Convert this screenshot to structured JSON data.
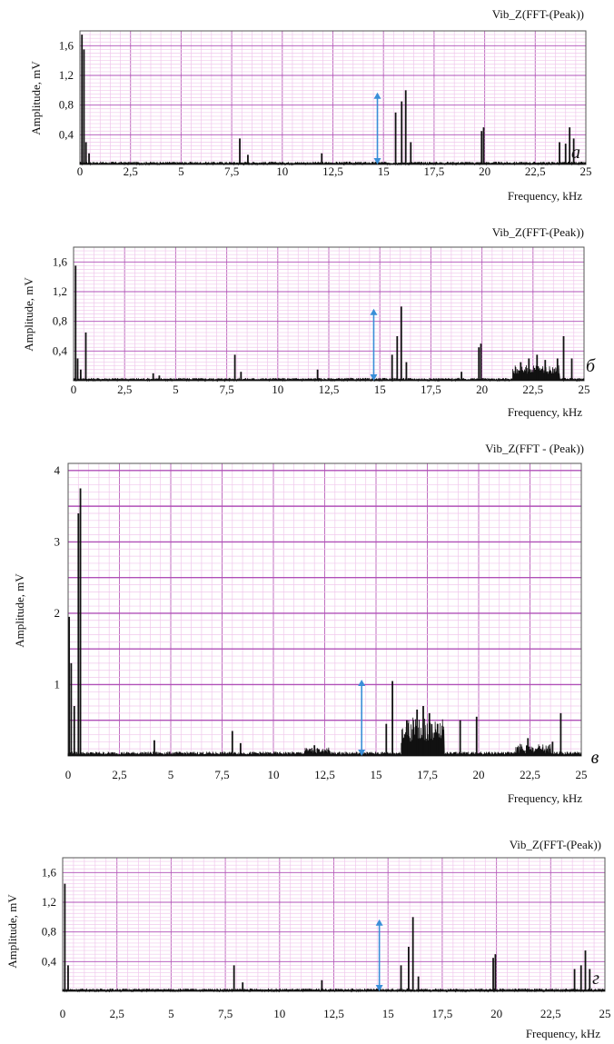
{
  "colors": {
    "grid_minor": "#f0c8ec",
    "grid_major": "#c070c0",
    "grid_major_y": "#b050b8",
    "frame": "#555555",
    "trace": "#111111",
    "arrow": "#3a8fd8"
  },
  "chart_data": [
    {
      "type": "line",
      "title": "Vib_Z(FFT-(Peak))",
      "xlabel": "Frequency, kHz",
      "ylabel": "Amplitude, mV",
      "panel_label": "а",
      "xlim": [
        0,
        25
      ],
      "ylim": [
        0,
        1.8
      ],
      "x_ticks": [
        0,
        2.5,
        5,
        7.5,
        10,
        12.5,
        15,
        17.5,
        20,
        22.5,
        25
      ],
      "x_tick_labels": [
        "0",
        "2,5",
        "5",
        "7,5",
        "10",
        "12,5",
        "15",
        "17,5",
        "20",
        "22,5",
        "25"
      ],
      "y_ticks": [
        0.4,
        0.8,
        1.2,
        1.6
      ],
      "y_tick_labels": [
        "0,4",
        "0,8",
        "1,2",
        "1,6"
      ],
      "grid": true,
      "arrow": {
        "x": 14.7,
        "y_from": 0,
        "y_to": 0.97
      },
      "series": [
        {
          "baseline": 0.025,
          "x": [
            0.1,
            0.2,
            0.3,
            0.45,
            7.9,
            8.3,
            11.95,
            15.6,
            15.9,
            16.1,
            16.35,
            19.85,
            19.95,
            23.7,
            24.0,
            24.2,
            24.4
          ],
          "values": [
            1.75,
            1.55,
            0.3,
            0.15,
            0.35,
            0.13,
            0.15,
            0.7,
            0.85,
            1.0,
            0.3,
            0.45,
            0.5,
            0.3,
            0.28,
            0.5,
            0.35
          ]
        }
      ]
    },
    {
      "type": "line",
      "title": "Vib_Z(FFT-(Peak))",
      "xlabel": "Frequency, kHz",
      "ylabel": "Amplitude, mV",
      "panel_label": "б",
      "xlim": [
        0,
        25
      ],
      "ylim": [
        0,
        1.8
      ],
      "x_ticks": [
        0,
        2.5,
        5,
        7.5,
        10,
        12.5,
        15,
        17.5,
        20,
        22.5,
        25
      ],
      "x_tick_labels": [
        "0",
        "2,5",
        "5",
        "7,5",
        "10",
        "12,5",
        "15",
        "17,5",
        "20",
        "22,5",
        "25"
      ],
      "y_ticks": [
        0.4,
        0.8,
        1.2,
        1.6
      ],
      "y_tick_labels": [
        "0,4",
        "0,8",
        "1,2",
        "1,6"
      ],
      "grid": true,
      "arrow": {
        "x": 14.7,
        "y_from": 0,
        "y_to": 0.97
      },
      "series": [
        {
          "baseline": 0.025,
          "x": [
            0.1,
            0.2,
            0.35,
            0.6,
            3.9,
            4.2,
            7.9,
            8.2,
            11.95,
            15.6,
            15.85,
            16.05,
            16.3,
            19.0,
            19.85,
            19.95,
            21.9,
            22.3,
            22.7,
            23.1,
            23.7,
            24.0,
            24.4
          ],
          "values": [
            1.55,
            0.3,
            0.15,
            0.65,
            0.1,
            0.07,
            0.35,
            0.12,
            0.15,
            0.35,
            0.6,
            1.0,
            0.25,
            0.12,
            0.45,
            0.5,
            0.25,
            0.3,
            0.35,
            0.28,
            0.3,
            0.6,
            0.3
          ]
        }
      ]
    },
    {
      "type": "line",
      "title": "Vib_Z(FFT - (Peak))",
      "xlabel": "Frequency, kHz",
      "ylabel": "Amplitude, mV",
      "panel_label": "в",
      "xlim": [
        0,
        25
      ],
      "ylim": [
        0,
        4.1
      ],
      "x_ticks": [
        0,
        2.5,
        5,
        7.5,
        10,
        12.5,
        15,
        17.5,
        20,
        22.5,
        25
      ],
      "x_tick_labels": [
        "0",
        "2,5",
        "5",
        "7,5",
        "10",
        "12,5",
        "15",
        "17,5",
        "20",
        "22,5",
        "25"
      ],
      "y_ticks": [
        1,
        2,
        3,
        4
      ],
      "y_tick_labels": [
        "1",
        "2",
        "3",
        "4"
      ],
      "grid": true,
      "arrow": {
        "x": 14.3,
        "y_from": 0,
        "y_to": 1.07
      },
      "series": [
        {
          "baseline": 0.04,
          "x": [
            0.05,
            0.15,
            0.3,
            0.5,
            0.6,
            4.2,
            8.0,
            8.4,
            12.0,
            15.5,
            15.8,
            16.5,
            17.0,
            17.3,
            17.6,
            18.0,
            19.1,
            19.9,
            22.4,
            23.6,
            24.0
          ],
          "values": [
            1.95,
            1.3,
            0.7,
            3.4,
            3.75,
            0.22,
            0.35,
            0.18,
            0.15,
            0.45,
            1.05,
            0.5,
            0.65,
            0.7,
            0.6,
            0.45,
            0.5,
            0.55,
            0.25,
            0.2,
            0.6
          ]
        }
      ]
    },
    {
      "type": "line",
      "title": "Vib_Z(FFT-(Peak))",
      "xlabel": "Frequency, kHz",
      "ylabel": "Amplitude, mV",
      "panel_label": "г",
      "xlim": [
        0,
        25
      ],
      "ylim": [
        0,
        1.8
      ],
      "x_ticks": [
        0,
        2.5,
        5,
        7.5,
        10,
        12.5,
        15,
        17.5,
        20,
        22.5,
        25
      ],
      "x_tick_labels": [
        "0",
        "2,5",
        "5",
        "7,5",
        "10",
        "12,5",
        "15",
        "17,5",
        "20",
        "22,5",
        "25"
      ],
      "y_ticks": [
        0.4,
        0.8,
        1.2,
        1.6
      ],
      "y_tick_labels": [
        "0,4",
        "0,8",
        "1,2",
        "1,6"
      ],
      "grid": true,
      "arrow": {
        "x": 14.6,
        "y_from": 0,
        "y_to": 0.97
      },
      "series": [
        {
          "baseline": 0.025,
          "x": [
            0.1,
            0.25,
            7.9,
            8.3,
            11.95,
            15.6,
            15.95,
            16.15,
            16.4,
            19.85,
            19.95,
            23.6,
            23.9,
            24.1,
            24.3
          ],
          "values": [
            1.45,
            0.35,
            0.35,
            0.12,
            0.15,
            0.35,
            0.6,
            1.0,
            0.2,
            0.45,
            0.5,
            0.3,
            0.35,
            0.55,
            0.3
          ]
        }
      ]
    }
  ]
}
